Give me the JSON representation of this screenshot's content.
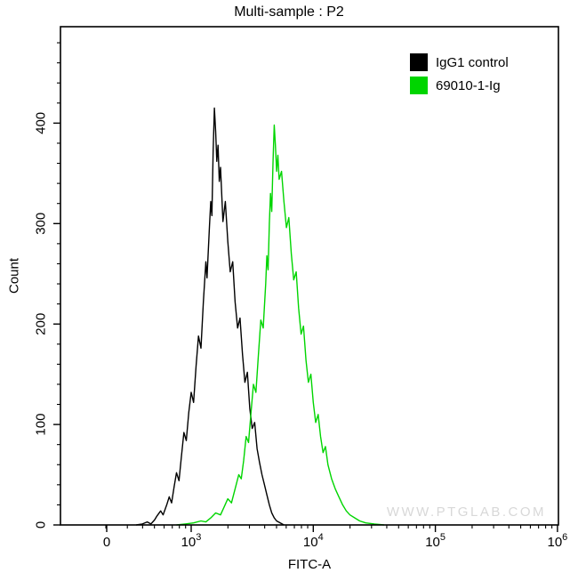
{
  "title": "Multi-sample : P2",
  "watermark": "WWW.PTGLAB.COM",
  "legend": {
    "items": [
      {
        "label": "IgG1 control",
        "color": "#000000"
      },
      {
        "label": "69010-1-Ig",
        "color": "#00d500"
      }
    ]
  },
  "chart_data": {
    "type": "line",
    "subtype": "flow-cytometry-histogram",
    "title": "Multi-sample : P2",
    "xlabel": "FITC-A",
    "ylabel": "Count",
    "x_scale": "biexponential-log",
    "x_ticks": [
      {
        "label": "0",
        "base": "0",
        "sup": "",
        "value": 0
      },
      {
        "label": "10^3",
        "base": "10",
        "sup": "3",
        "value": 1000
      },
      {
        "label": "10^4",
        "base": "10",
        "sup": "4",
        "value": 10000
      },
      {
        "label": "10^5",
        "base": "10",
        "sup": "5",
        "value": 100000
      },
      {
        "label": "10^6",
        "base": "10",
        "sup": "6",
        "value": 1000000
      }
    ],
    "y_ticks": [
      0,
      100,
      200,
      300,
      400
    ],
    "y_minor_step": 20,
    "ylim": [
      0,
      496
    ],
    "grid": false,
    "legend_position": "top-right-inside",
    "series": [
      {
        "name": "IgG1 control",
        "color": "#000000",
        "peak_fitc_approx": 1550,
        "peak_count": 415,
        "x_unit": "log10(FITC-A)",
        "points": [
          [
            2.55,
            0
          ],
          [
            2.6,
            1
          ],
          [
            2.64,
            3
          ],
          [
            2.67,
            1
          ],
          [
            2.7,
            5
          ],
          [
            2.72,
            9
          ],
          [
            2.75,
            14
          ],
          [
            2.77,
            10
          ],
          [
            2.8,
            20
          ],
          [
            2.82,
            28
          ],
          [
            2.84,
            22
          ],
          [
            2.86,
            38
          ],
          [
            2.88,
            52
          ],
          [
            2.9,
            44
          ],
          [
            2.92,
            68
          ],
          [
            2.94,
            92
          ],
          [
            2.96,
            84
          ],
          [
            2.98,
            112
          ],
          [
            3.0,
            132
          ],
          [
            3.02,
            122
          ],
          [
            3.04,
            158
          ],
          [
            3.06,
            188
          ],
          [
            3.08,
            176
          ],
          [
            3.1,
            222
          ],
          [
            3.12,
            262
          ],
          [
            3.13,
            246
          ],
          [
            3.15,
            298
          ],
          [
            3.16,
            322
          ],
          [
            3.17,
            308
          ],
          [
            3.18,
            372
          ],
          [
            3.19,
            415
          ],
          [
            3.2,
            392
          ],
          [
            3.21,
            362
          ],
          [
            3.22,
            378
          ],
          [
            3.23,
            342
          ],
          [
            3.24,
            356
          ],
          [
            3.25,
            330
          ],
          [
            3.26,
            302
          ],
          [
            3.28,
            322
          ],
          [
            3.3,
            282
          ],
          [
            3.32,
            252
          ],
          [
            3.34,
            262
          ],
          [
            3.36,
            222
          ],
          [
            3.38,
            196
          ],
          [
            3.4,
            206
          ],
          [
            3.42,
            170
          ],
          [
            3.44,
            142
          ],
          [
            3.46,
            152
          ],
          [
            3.48,
            116
          ],
          [
            3.5,
            96
          ],
          [
            3.52,
            102
          ],
          [
            3.54,
            76
          ],
          [
            3.56,
            62
          ],
          [
            3.58,
            50
          ],
          [
            3.6,
            40
          ],
          [
            3.62,
            30
          ],
          [
            3.64,
            20
          ],
          [
            3.66,
            12
          ],
          [
            3.68,
            7
          ],
          [
            3.7,
            4
          ],
          [
            3.73,
            2
          ],
          [
            3.76,
            0
          ]
        ]
      },
      {
        "name": "69010-1-Ig",
        "color": "#00d500",
        "peak_fitc_approx": 4600,
        "peak_count": 398,
        "x_unit": "log10(FITC-A)",
        "points": [
          [
            2.88,
            0
          ],
          [
            2.95,
            1
          ],
          [
            3.02,
            2
          ],
          [
            3.08,
            4
          ],
          [
            3.12,
            3
          ],
          [
            3.16,
            7
          ],
          [
            3.2,
            12
          ],
          [
            3.24,
            10
          ],
          [
            3.27,
            18
          ],
          [
            3.3,
            26
          ],
          [
            3.33,
            22
          ],
          [
            3.36,
            36
          ],
          [
            3.39,
            50
          ],
          [
            3.41,
            46
          ],
          [
            3.43,
            64
          ],
          [
            3.45,
            88
          ],
          [
            3.47,
            82
          ],
          [
            3.49,
            112
          ],
          [
            3.51,
            140
          ],
          [
            3.53,
            132
          ],
          [
            3.55,
            168
          ],
          [
            3.57,
            204
          ],
          [
            3.59,
            196
          ],
          [
            3.61,
            240
          ],
          [
            3.62,
            268
          ],
          [
            3.63,
            254
          ],
          [
            3.64,
            300
          ],
          [
            3.65,
            330
          ],
          [
            3.66,
            312
          ],
          [
            3.67,
            360
          ],
          [
            3.68,
            398
          ],
          [
            3.69,
            378
          ],
          [
            3.7,
            352
          ],
          [
            3.71,
            368
          ],
          [
            3.72,
            344
          ],
          [
            3.74,
            352
          ],
          [
            3.76,
            322
          ],
          [
            3.78,
            296
          ],
          [
            3.8,
            306
          ],
          [
            3.82,
            270
          ],
          [
            3.84,
            244
          ],
          [
            3.86,
            252
          ],
          [
            3.88,
            216
          ],
          [
            3.9,
            190
          ],
          [
            3.92,
            198
          ],
          [
            3.94,
            164
          ],
          [
            3.96,
            142
          ],
          [
            3.98,
            150
          ],
          [
            4.0,
            122
          ],
          [
            4.02,
            102
          ],
          [
            4.04,
            110
          ],
          [
            4.06,
            88
          ],
          [
            4.08,
            72
          ],
          [
            4.1,
            78
          ],
          [
            4.12,
            60
          ],
          [
            4.15,
            46
          ],
          [
            4.18,
            36
          ],
          [
            4.21,
            28
          ],
          [
            4.24,
            20
          ],
          [
            4.27,
            14
          ],
          [
            4.3,
            10
          ],
          [
            4.34,
            7
          ],
          [
            4.38,
            4
          ],
          [
            4.43,
            2
          ],
          [
            4.5,
            1
          ],
          [
            4.58,
            0
          ]
        ]
      }
    ]
  }
}
